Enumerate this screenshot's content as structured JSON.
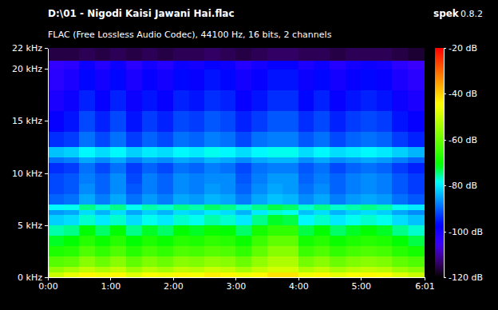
{
  "chart_data": {
    "type": "heatmap",
    "title": "D:\\01 - Nigodi Kaisi Jawani Hai.flac",
    "subtitle": "FLAC (Free Lossless Audio Codec), 44100 Hz, 16 bits, 2 channels",
    "annotations": [
      "spek",
      "0.8.2"
    ],
    "xlim": [
      0,
      361
    ],
    "xticks": [
      {
        "value": 0,
        "label": "0:00"
      },
      {
        "value": 60,
        "label": "1:00"
      },
      {
        "value": 120,
        "label": "2:00"
      },
      {
        "value": 180,
        "label": "3:00"
      },
      {
        "value": 240,
        "label": "4:00"
      },
      {
        "value": 300,
        "label": "5:00"
      },
      {
        "value": 361,
        "label": "6:01"
      }
    ],
    "ylim": [
      0,
      22
    ],
    "yticks": [
      {
        "value": 0,
        "label": "0 kHz"
      },
      {
        "value": 5,
        "label": "5 kHz"
      },
      {
        "value": 10,
        "label": "10 kHz"
      },
      {
        "value": 15,
        "label": "15 kHz"
      },
      {
        "value": 20,
        "label": "20 kHz"
      },
      {
        "value": 22,
        "label": "22 kHz"
      }
    ],
    "x_bins": [
      0,
      15,
      30,
      45,
      60,
      75,
      90,
      105,
      120,
      135,
      150,
      165,
      180,
      195,
      210,
      225,
      240,
      255,
      270,
      285,
      300,
      315,
      330,
      345,
      361
    ],
    "y_bins": [
      0,
      0.5,
      1,
      2,
      3,
      4,
      5,
      6,
      6.5,
      7,
      8,
      9,
      10,
      11,
      11.5,
      12.5,
      14,
      16,
      18,
      20,
      20.8,
      22
    ],
    "cells": [
      [
        -50,
        -47,
        -44,
        -46,
        -44,
        -48,
        -45,
        -46,
        -44,
        -45,
        -43,
        -44,
        -46,
        -44,
        -42,
        -42,
        -46,
        -44,
        -47,
        -45,
        -44,
        -45,
        -48,
        -50
      ],
      [
        -56,
        -54,
        -51,
        -53,
        -51,
        -55,
        -52,
        -54,
        -51,
        -52,
        -50,
        -51,
        -54,
        -51,
        -49,
        -49,
        -53,
        -51,
        -54,
        -52,
        -51,
        -52,
        -55,
        -57
      ],
      [
        -62,
        -61,
        -57,
        -60,
        -57,
        -61,
        -58,
        -60,
        -57,
        -58,
        -56,
        -57,
        -60,
        -56,
        -53,
        -53,
        -59,
        -57,
        -60,
        -58,
        -57,
        -58,
        -61,
        -63
      ],
      [
        -68,
        -67,
        -63,
        -66,
        -63,
        -67,
        -64,
        -66,
        -63,
        -64,
        -62,
        -63,
        -66,
        -61,
        -57,
        -57,
        -65,
        -63,
        -66,
        -64,
        -63,
        -64,
        -67,
        -69
      ],
      [
        -72,
        -71,
        -67,
        -70,
        -67,
        -71,
        -68,
        -70,
        -67,
        -68,
        -66,
        -67,
        -70,
        -65,
        -61,
        -61,
        -69,
        -67,
        -70,
        -68,
        -67,
        -68,
        -71,
        -73
      ],
      [
        -76,
        -75,
        -71,
        -74,
        -71,
        -75,
        -72,
        -74,
        -71,
        -72,
        -70,
        -71,
        -74,
        -69,
        -66,
        -66,
        -73,
        -71,
        -74,
        -72,
        -71,
        -72,
        -75,
        -77
      ],
      [
        -82,
        -81,
        -77,
        -80,
        -77,
        -81,
        -78,
        -80,
        -77,
        -78,
        -76,
        -77,
        -80,
        -75,
        -72,
        -73,
        -79,
        -77,
        -80,
        -78,
        -77,
        -78,
        -81,
        -83
      ],
      [
        -86,
        -85,
        -81,
        -84,
        -81,
        -85,
        -82,
        -84,
        -81,
        -82,
        -80,
        -81,
        -84,
        -80,
        -77,
        -78,
        -83,
        -81,
        -84,
        -82,
        -81,
        -82,
        -85,
        -87
      ],
      [
        -79,
        -78,
        -75,
        -77,
        -75,
        -78,
        -76,
        -77,
        -75,
        -76,
        -74,
        -75,
        -77,
        -75,
        -73,
        -74,
        -77,
        -75,
        -77,
        -76,
        -75,
        -76,
        -78,
        -80
      ],
      [
        -90,
        -89,
        -85,
        -88,
        -85,
        -89,
        -86,
        -88,
        -85,
        -86,
        -84,
        -85,
        -88,
        -85,
        -83,
        -84,
        -87,
        -85,
        -88,
        -86,
        -85,
        -86,
        -89,
        -91
      ],
      [
        -92,
        -91,
        -87,
        -90,
        -87,
        -91,
        -88,
        -90,
        -87,
        -88,
        -86,
        -87,
        -90,
        -87,
        -85,
        -86,
        -89,
        -87,
        -90,
        -88,
        -87,
        -88,
        -91,
        -93
      ],
      [
        -92,
        -91,
        -88,
        -90,
        -87,
        -92,
        -88,
        -90,
        -87,
        -88,
        -87,
        -87,
        -91,
        -88,
        -86,
        -86,
        -90,
        -88,
        -90,
        -88,
        -87,
        -88,
        -91,
        -93
      ],
      [
        -94,
        -93,
        -89,
        -92,
        -89,
        -93,
        -90,
        -92,
        -89,
        -90,
        -88,
        -89,
        -92,
        -89,
        -88,
        -88,
        -91,
        -89,
        -92,
        -90,
        -89,
        -90,
        -93,
        -95
      ],
      [
        -89,
        -88,
        -85,
        -87,
        -85,
        -88,
        -86,
        -87,
        -85,
        -86,
        -84,
        -85,
        -87,
        -85,
        -84,
        -84,
        -87,
        -85,
        -87,
        -86,
        -85,
        -86,
        -88,
        -90
      ],
      [
        -83,
        -82,
        -79,
        -81,
        -79,
        -82,
        -80,
        -81,
        -79,
        -80,
        -78,
        -79,
        -81,
        -79,
        -78,
        -78,
        -81,
        -79,
        -81,
        -80,
        -79,
        -80,
        -82,
        -84
      ],
      [
        -94,
        -93,
        -89,
        -92,
        -89,
        -93,
        -90,
        -92,
        -89,
        -90,
        -88,
        -89,
        -92,
        -89,
        -88,
        -88,
        -91,
        -89,
        -92,
        -90,
        -89,
        -90,
        -93,
        -95
      ],
      [
        -98,
        -96,
        -92,
        -95,
        -92,
        -96,
        -93,
        -95,
        -92,
        -93,
        -91,
        -92,
        -95,
        -93,
        -91,
        -91,
        -94,
        -92,
        -95,
        -93,
        -92,
        -93,
        -96,
        -98
      ],
      [
        -101,
        -99,
        -95,
        -98,
        -95,
        -99,
        -96,
        -98,
        -95,
        -96,
        -94,
        -95,
        -98,
        -96,
        -94,
        -94,
        -97,
        -95,
        -98,
        -96,
        -95,
        -96,
        -99,
        -101
      ],
      [
        -103,
        -101,
        -97,
        -100,
        -97,
        -101,
        -98,
        -100,
        -97,
        -98,
        -96,
        -97,
        -100,
        -98,
        -96,
        -96,
        -99,
        -97,
        -100,
        -98,
        -97,
        -98,
        -101,
        -103
      ],
      [
        -104,
        -103,
        -99,
        -102,
        -99,
        -103,
        -100,
        -102,
        -99,
        -100,
        -98,
        -99,
        -102,
        -100,
        -98,
        -98,
        -101,
        -99,
        -102,
        -100,
        -99,
        -100,
        -103,
        -105
      ],
      [
        -116,
        -116,
        -115,
        -116,
        -115,
        -116,
        -115,
        -116,
        -115,
        -115,
        -114,
        -115,
        -116,
        -115,
        -114,
        -114,
        -115,
        -115,
        -116,
        -115,
        -115,
        -115,
        -116,
        -117
      ]
    ],
    "colorbar_range": [
      -120,
      -20
    ],
    "colorbar_ticks": [
      {
        "value": -20,
        "label": "-20 dB"
      },
      {
        "value": -40,
        "label": "-40 dB"
      },
      {
        "value": -60,
        "label": "-60 dB"
      },
      {
        "value": -80,
        "label": "-80 dB"
      },
      {
        "value": -100,
        "label": "-100 dB"
      },
      {
        "value": -120,
        "label": "-120 dB"
      }
    ]
  }
}
